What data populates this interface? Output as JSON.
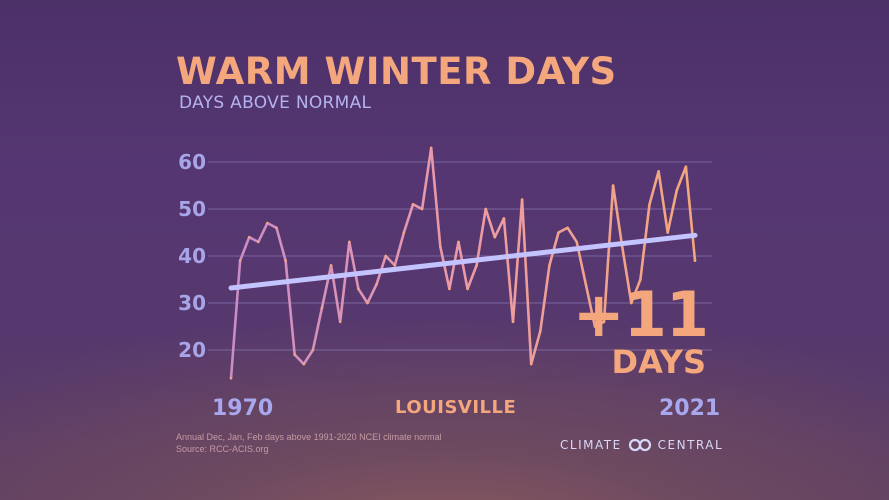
{
  "title": "WARM WINTER DAYS",
  "subtitle": "DAYS ABOVE NORMAL",
  "station": "LOUISVILLE",
  "start_year": "1970",
  "end_year": "2021",
  "change_value": "+11",
  "change_unit": "DAYS",
  "footnote": "Annual Dec, Jan, Feb days above 1991-2020 NCEI climate normal",
  "source": "Source: RCC-ACIS.org",
  "brand": "CLIMATE",
  "brand_second": "CENTRAL",
  "colors": {
    "accent": "#f4a77c",
    "trend": "#c3c3ff",
    "gridline": "#8c78b4",
    "tick": "#a7a5e8"
  },
  "chart_data": {
    "type": "line",
    "x_range": [
      1970,
      2021
    ],
    "ylim": [
      13,
      63
    ],
    "yticks": [
      20,
      30,
      40,
      50,
      60
    ],
    "grid": true,
    "series": [
      {
        "x": [
          1970,
          1971,
          1972,
          1973,
          1974,
          1975,
          1976,
          1977,
          1978,
          1979,
          1980,
          1981,
          1982,
          1983,
          1984,
          1985,
          1986,
          1987,
          1988,
          1989,
          1990,
          1991,
          1992,
          1993,
          1994,
          1995,
          1996,
          1997,
          1998,
          1999,
          2000,
          2001,
          2002,
          2003,
          2004,
          2005,
          2006,
          2007,
          2008,
          2009,
          2010,
          2011,
          2012,
          2013,
          2014,
          2015,
          2016,
          2017,
          2018,
          2019,
          2020,
          2021
        ],
        "values": [
          14,
          39,
          44,
          43,
          47,
          46,
          39,
          19,
          17,
          20,
          29,
          38,
          26,
          43,
          33,
          30,
          34,
          40,
          38,
          45,
          51,
          50,
          63,
          42,
          33,
          43,
          33,
          38,
          50,
          44,
          48,
          26,
          52,
          17,
          24,
          38,
          45,
          46,
          43,
          34,
          25,
          26,
          55,
          42,
          30,
          35,
          51,
          58,
          45,
          54,
          59,
          39
        ]
      }
    ],
    "trend": {
      "start": 33.2,
      "end": 44.4
    }
  }
}
